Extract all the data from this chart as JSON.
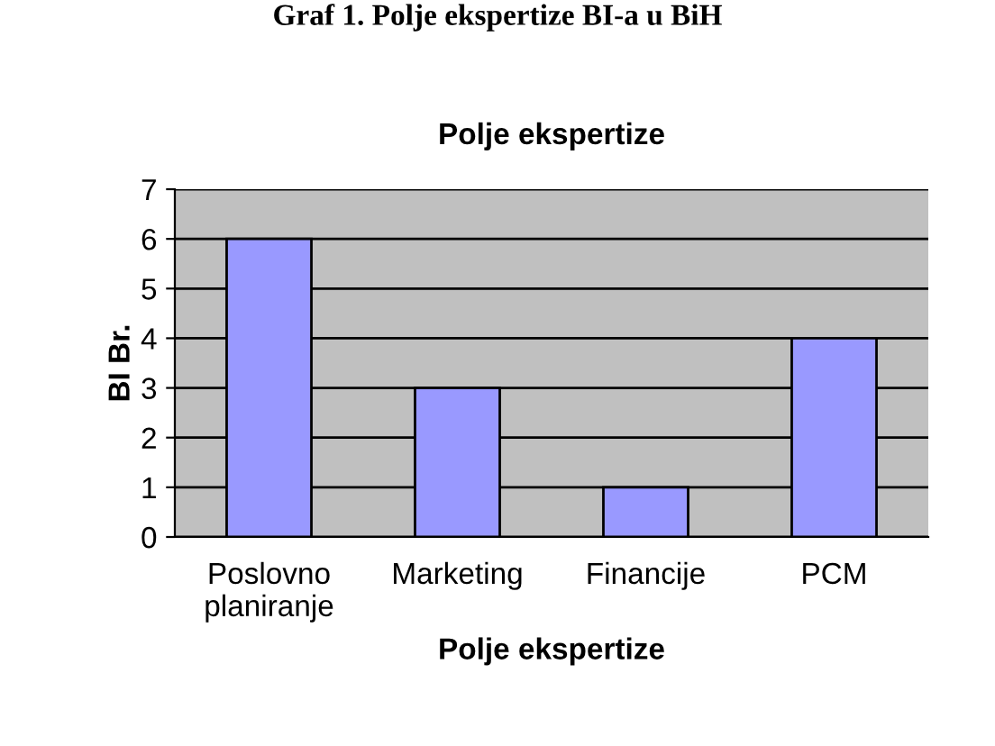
{
  "chart_data": {
    "type": "bar",
    "title": "Polje ekspertize",
    "xlabel": "Polje ekspertize",
    "ylabel": "BI Br.",
    "annotations": [
      "Graf 1. Polje ekspertize BI-a u BiH"
    ],
    "categories": [
      "Poslovno\nplaniranje",
      "Marketing",
      "Financije",
      "PCM"
    ],
    "values": [
      6,
      3,
      1,
      4
    ],
    "color": "#9999ff",
    "ylim": [
      0,
      7
    ],
    "yticks": [
      0,
      1,
      2,
      3,
      4,
      5,
      6,
      7
    ],
    "grid": "y",
    "legend": false
  }
}
